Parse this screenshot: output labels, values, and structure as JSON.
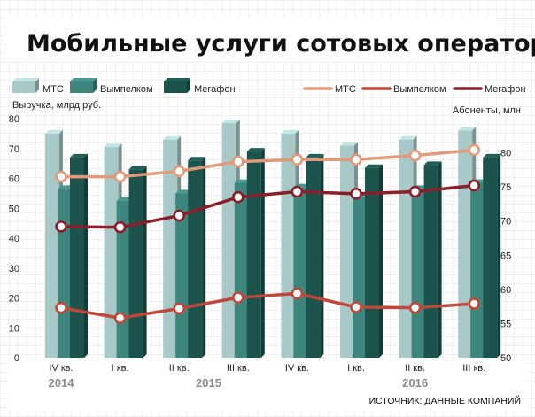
{
  "chart_data": {
    "type": "bar+line",
    "title": "Мобильные услуги сотовых операторов",
    "source": "ИСТОЧНИК: ДАННЫЕ КОМПАНИЙ",
    "ylabel_left": "Выручка, млрд руб.",
    "ylabel_right": "Абоненты, млн",
    "ylim_left": [
      0,
      80
    ],
    "yticks_left": [
      "0",
      "10",
      "20",
      "30",
      "40",
      "50",
      "60",
      "70",
      "80"
    ],
    "ylim_right": [
      50,
      85
    ],
    "yticks_right": [
      "50",
      "55",
      "60",
      "65",
      "70",
      "75",
      "80"
    ],
    "categories": [
      "IV кв.",
      "I кв.",
      "II кв.",
      "III кв.",
      "IV кв.",
      "I кв.",
      "II кв.",
      "III кв."
    ],
    "years": [
      {
        "label": "2014",
        "start": 0,
        "end": 0
      },
      {
        "label": "2015",
        "start": 1,
        "end": 4
      },
      {
        "label": "2016",
        "start": 5,
        "end": 7
      }
    ],
    "bar_series": [
      {
        "name": "МТС",
        "color": "#a8c9c7",
        "values": [
          75,
          70.5,
          73,
          78.5,
          75,
          71,
          73,
          76
        ]
      },
      {
        "name": "Вымпелком",
        "color": "#3e857d",
        "values": [
          56.5,
          52.5,
          55,
          58.5,
          57,
          54,
          56.5,
          58.5
        ]
      },
      {
        "name": "Мегафон",
        "color": "#1c534c",
        "values": [
          67,
          63,
          66,
          69,
          67,
          63.5,
          64.5,
          67
        ]
      }
    ],
    "line_series": [
      {
        "name": "МТС",
        "color": "#e09a7a",
        "values": [
          76.5,
          76.5,
          77.3,
          78.7,
          79,
          79,
          79.6,
          80.4
        ]
      },
      {
        "name": "Вымпелком",
        "color": "#c0473a",
        "values": [
          57.3,
          55.8,
          57.2,
          58.8,
          59.4,
          57.4,
          57.3,
          57.9
        ]
      },
      {
        "name": "Мегафон",
        "color": "#8a1f2a",
        "values": [
          69.2,
          69.1,
          70.8,
          73.5,
          74.3,
          74,
          74.3,
          75.2
        ]
      }
    ]
  }
}
